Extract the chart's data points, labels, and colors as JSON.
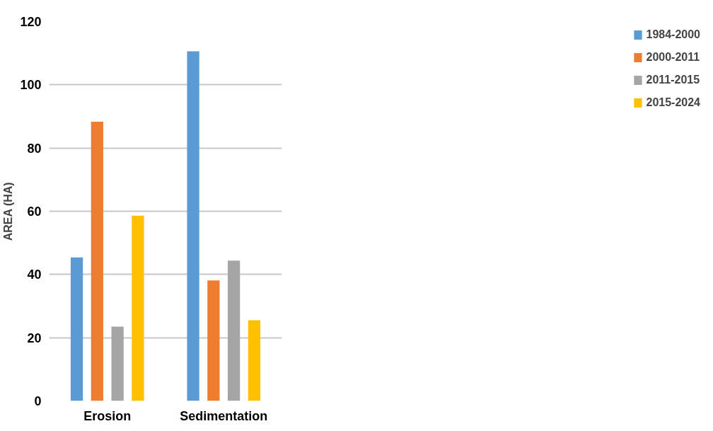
{
  "chart_data": {
    "type": "bar",
    "ylabel": "AREA (HA)",
    "categories": [
      "Erosion",
      "Sedimentation"
    ],
    "series": [
      {
        "name": "1984-2000",
        "color": "#5b9bd5",
        "values": [
          45.4,
          110.6
        ]
      },
      {
        "name": "2000-2011",
        "color": "#ed7d31",
        "values": [
          88.3,
          38.1
        ]
      },
      {
        "name": "2011-2015",
        "color": "#a5a5a5",
        "values": [
          23.5,
          44.4
        ]
      },
      {
        "name": "2015-2024",
        "color": "#ffc000",
        "values": [
          58.6,
          25.5
        ]
      }
    ],
    "ylim": [
      0,
      120
    ],
    "yticks": [
      0,
      20,
      40,
      60,
      80,
      100,
      120
    ],
    "grid": "y",
    "legend": "right"
  }
}
